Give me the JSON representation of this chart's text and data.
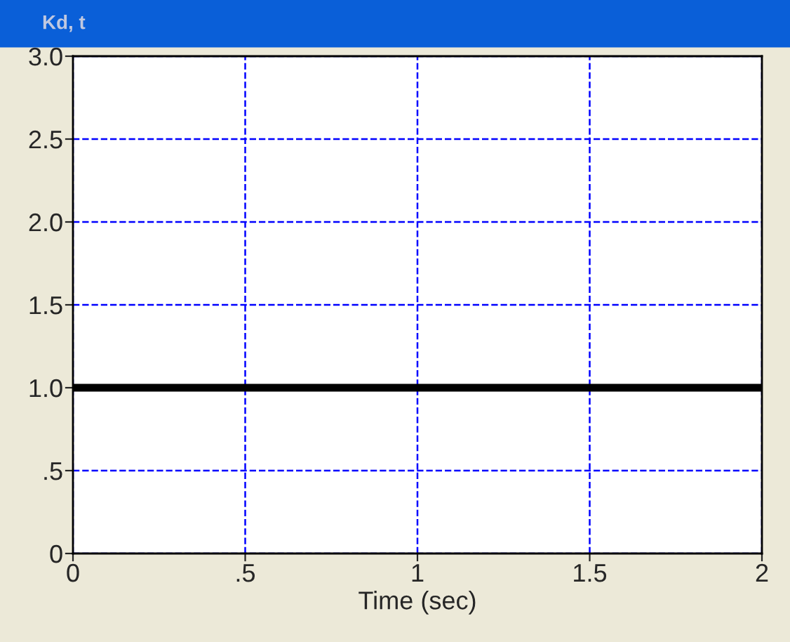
{
  "chart_data": {
    "type": "line",
    "title": "Kd, t",
    "xlabel": "Time (sec)",
    "x": [
      0,
      2
    ],
    "series": [
      {
        "color": "#000000",
        "values": [
          1.0,
          1.0
        ]
      }
    ],
    "xlim": [
      0,
      2
    ],
    "xticks": [
      0,
      {
        "value": 0.5,
        "label": ".5"
      },
      1,
      1.5,
      2
    ],
    "ylim": [
      0,
      3
    ],
    "yticks": [
      0,
      {
        "value": 0.5,
        "label": ".5"
      },
      {
        "value": 1,
        "label": "1.0"
      },
      1.5,
      {
        "value": 2,
        "label": "2.0"
      },
      2.5,
      {
        "value": 3,
        "label": "3.0"
      }
    ],
    "grid": true,
    "line_style": "solid",
    "marker": "none"
  }
}
